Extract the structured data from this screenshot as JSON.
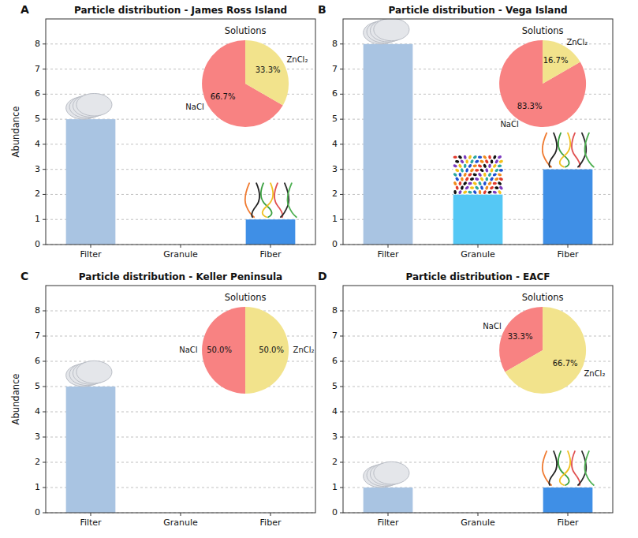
{
  "chart_data": [
    {
      "type": "bar",
      "label": "A",
      "title": "Particle distribution - James Ross Island",
      "ylabel": "Abundance",
      "categories": [
        "Filter",
        "Granule",
        "Fiber"
      ],
      "values": [
        5,
        0,
        1
      ],
      "colors": [
        "#a9c4e2",
        "#55c8f5",
        "#3f8fe6"
      ],
      "ylim": [
        0,
        9
      ],
      "yticks": [
        0,
        1,
        2,
        3,
        4,
        5,
        6,
        7,
        8
      ],
      "grid": true,
      "inset": {
        "type": "pie",
        "title": "Solutions",
        "categories": [
          "NaCl",
          "ZnCl₂"
        ],
        "values": [
          66.7,
          33.3
        ],
        "value_labels": [
          "66.7%",
          "33.3%"
        ],
        "colors": [
          "#f88282",
          "#f2e38c"
        ],
        "data_labels": true
      }
    },
    {
      "type": "bar",
      "label": "B",
      "title": "Particle distribution - Vega Island",
      "categories": [
        "Filter",
        "Granule",
        "Fiber"
      ],
      "values": [
        8,
        2,
        3
      ],
      "colors": [
        "#a9c4e2",
        "#55c8f5",
        "#3f8fe6"
      ],
      "ylim": [
        0,
        9
      ],
      "yticks": [
        0,
        1,
        2,
        3,
        4,
        5,
        6,
        7,
        8
      ],
      "grid": true,
      "inset": {
        "type": "pie",
        "title": "Solutions",
        "categories": [
          "NaCl",
          "ZnCl₂"
        ],
        "values": [
          83.3,
          16.7
        ],
        "value_labels": [
          "83.3%",
          "16.7%"
        ],
        "colors": [
          "#f88282",
          "#f2e38c"
        ],
        "data_labels": true
      }
    },
    {
      "type": "bar",
      "label": "C",
      "title": "Particle distribution - Keller Peninsula",
      "ylabel": "Abundance",
      "categories": [
        "Filter",
        "Granule",
        "Fiber"
      ],
      "values": [
        5,
        0,
        0
      ],
      "colors": [
        "#a9c4e2",
        "#55c8f5",
        "#3f8fe6"
      ],
      "ylim": [
        0,
        9
      ],
      "yticks": [
        0,
        1,
        2,
        3,
        4,
        5,
        6,
        7,
        8
      ],
      "grid": true,
      "inset": {
        "type": "pie",
        "title": "Solutions",
        "categories": [
          "NaCl",
          "ZnCl₂"
        ],
        "values": [
          50,
          50
        ],
        "value_labels": [
          "50.0%",
          "50.0%"
        ],
        "colors": [
          "#f88282",
          "#f2e38c"
        ],
        "data_labels": true
      }
    },
    {
      "type": "bar",
      "label": "D",
      "title": "Particle distribution - EACF",
      "categories": [
        "Filter",
        "Granule",
        "Fiber"
      ],
      "values": [
        1,
        0,
        1
      ],
      "colors": [
        "#a9c4e2",
        "#55c8f5",
        "#3f8fe6"
      ],
      "ylim": [
        0,
        9
      ],
      "yticks": [
        0,
        1,
        2,
        3,
        4,
        5,
        6,
        7,
        8
      ],
      "grid": true,
      "inset": {
        "type": "pie",
        "title": "Solutions",
        "categories": [
          "NaCl",
          "ZnCl₂"
        ],
        "values": [
          33.3,
          66.7
        ],
        "value_labels": [
          "33.3%",
          "66.7%"
        ],
        "colors": [
          "#f88282",
          "#f2e38c"
        ],
        "data_labels": true
      }
    }
  ]
}
